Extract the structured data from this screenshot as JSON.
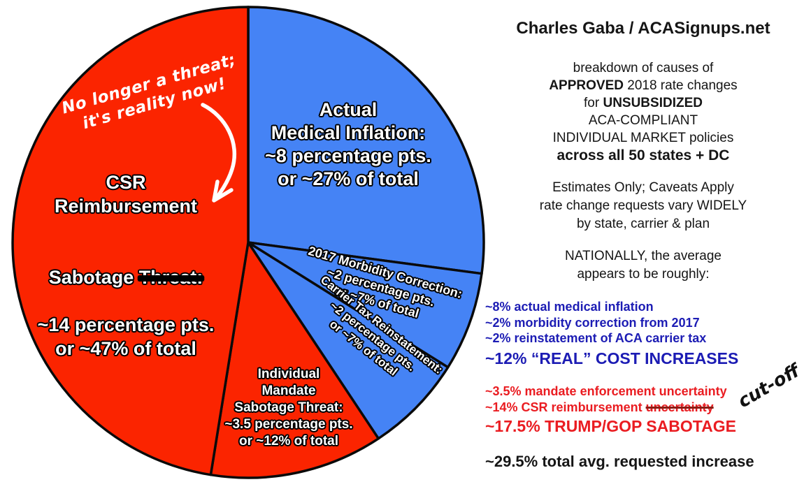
{
  "chart_data": {
    "type": "pie",
    "direction": "clockwise",
    "start_angle_deg": 0,
    "unit": "percentage points of approved 2018 rate increases",
    "total_pts": 29.5,
    "slices": [
      {
        "label": "Actual Medical Inflation",
        "value_pts": 8,
        "share_of_total": "~27%",
        "color": "#4583f5"
      },
      {
        "label": "2017 Morbidity Correction",
        "value_pts": 2,
        "share_of_total": "~7%",
        "color": "#4583f5"
      },
      {
        "label": "Carrier Tax Reinstatement",
        "value_pts": 2,
        "share_of_total": "~7%",
        "color": "#4583f5"
      },
      {
        "label": "Individual Mandate Sabotage Threat",
        "value_pts": 3.5,
        "share_of_total": "~12%",
        "color": "#fb2400"
      },
      {
        "label": "CSR Reimbursement Sabotage Threat (struck: no longer a threat)",
        "value_pts": 14,
        "share_of_total": "~47%",
        "color": "#fb2400"
      }
    ]
  },
  "pie_labels": {
    "inflation": {
      "lines": [
        "Actual",
        "Medical Inflation:",
        "~8 percentage pts.",
        "or ~27% of total"
      ]
    },
    "morbidity": {
      "lines": [
        "2017 Morbidity Correction:",
        "~2 percentage pts.",
        "or ~7% of total"
      ]
    },
    "carrier": {
      "lines": [
        "Carrier Tax Reinstatement:",
        "~2 percentage pts.",
        "or ~7% of total"
      ]
    },
    "mandate": {
      "lines": [
        "Individual",
        "Mandate",
        "Sabotage Threat:",
        "~3.5 percentage pts.",
        "or ~12% of total"
      ]
    },
    "csr": {
      "lines_top": [
        "CSR",
        "Reimbursement"
      ],
      "line3_prefix": "Sabotage ",
      "line3_struck": "Threat:",
      "lines_bottom": [
        "~14 percentage pts.",
        "or ~47% of total"
      ]
    },
    "handwritten_note": {
      "lines": [
        "No longer a threat;",
        "it's reality now!"
      ]
    }
  },
  "right_panel": {
    "title": "Charles Gaba / ACASignups.net",
    "intro": {
      "line1": "breakdown of causes of",
      "line2_bold": "APPROVED",
      "line2_rest": " 2018 rate changes",
      "line3_pre": "for ",
      "line3_bold": "UNSUBSIDIZED",
      "line4": "ACA-COMPLIANT",
      "line5": "INDIVIDUAL MARKET policies",
      "line6_bold": "across all 50 states + DC"
    },
    "caveats": {
      "lines": [
        "Estimates Only; Caveats Apply",
        "rate change requests vary WIDELY",
        "by state, carrier & plan"
      ]
    },
    "nationally": {
      "lines": [
        "NATIONALLY, the average",
        "appears to be roughly:"
      ]
    },
    "blue_items": [
      "~8% actual medical inflation",
      "~2% morbidity correction from 2017",
      "~2% reinstatement of ACA carrier tax"
    ],
    "blue_total": "~12% “REAL” COST INCREASES",
    "red_item1": "~3.5% mandate enforcement uncertainty",
    "red_item2_prefix": "~14% CSR reimbursement ",
    "red_item2_struck": "uncertainty",
    "red_total": "~17.5% TRUMP/GOP SABOTAGE",
    "grand_total": "~29.5% total avg. requested increase",
    "cutoff_note": "cut-off"
  },
  "colors": {
    "pie_blue": "#4583f5",
    "pie_red": "#fb2400",
    "pie_outline": "#0a0a0a",
    "text_blue": "#1c1cb4",
    "text_red": "#ea1c21",
    "text_black": "#151515"
  }
}
